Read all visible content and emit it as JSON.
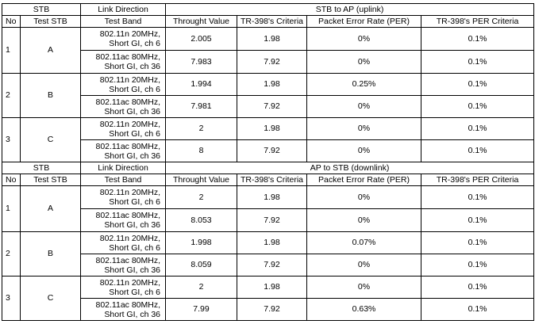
{
  "headers": {
    "stb": "STB",
    "link_direction": "Link Direction",
    "no": "No",
    "test_stb": "Test STB",
    "test_band": "Test Band",
    "throughput": "Throught Value",
    "tr_criteria": "TR-398's Criteria",
    "per": "Packet Error Rate (PER)",
    "tr_per": "TR-398's PER Criteria"
  },
  "sections": [
    {
      "direction": "STB to AP (uplink)",
      "groups": [
        {
          "no": "1",
          "stb": "A",
          "rows": [
            {
              "band1": "802.11n 20MHz,",
              "band2": "Short GI, ch 6",
              "throughput": "2.005",
              "criteria": "1.98",
              "per": "0%",
              "per_criteria": "0.1%"
            },
            {
              "band1": "802.11ac 80MHz,",
              "band2": "Short GI, ch 36",
              "throughput": "7.983",
              "criteria": "7.92",
              "per": "0%",
              "per_criteria": "0.1%"
            }
          ]
        },
        {
          "no": "2",
          "stb": "B",
          "rows": [
            {
              "band1": "802.11n 20MHz,",
              "band2": "Short GI, ch 6",
              "throughput": "1.994",
              "criteria": "1.98",
              "per": "0.25%",
              "per_criteria": "0.1%"
            },
            {
              "band1": "802.11ac 80MHz,",
              "band2": "Short GI, ch 36",
              "throughput": "7.981",
              "criteria": "7.92",
              "per": "0%",
              "per_criteria": "0.1%"
            }
          ]
        },
        {
          "no": "3",
          "stb": "C",
          "rows": [
            {
              "band1": "802.11n 20MHz,",
              "band2": "Short GI, ch 6",
              "throughput": "2",
              "criteria": "1.98",
              "per": "0%",
              "per_criteria": "0.1%"
            },
            {
              "band1": "802.11ac 80MHz,",
              "band2": "Short GI, ch 36",
              "throughput": "8",
              "criteria": "7.92",
              "per": "0%",
              "per_criteria": "0.1%"
            }
          ]
        }
      ]
    },
    {
      "direction": "AP to STB (downlink)",
      "groups": [
        {
          "no": "1",
          "stb": "A",
          "rows": [
            {
              "band1": "802.11n 20MHz,",
              "band2": "Short GI, ch 6",
              "throughput": "2",
              "criteria": "1.98",
              "per": "0%",
              "per_criteria": "0.1%"
            },
            {
              "band1": "802.11ac 80MHz,",
              "band2": "Short GI, ch 36",
              "throughput": "8.053",
              "criteria": "7.92",
              "per": "0%",
              "per_criteria": "0.1%"
            }
          ]
        },
        {
          "no": "2",
          "stb": "B",
          "rows": [
            {
              "band1": "802.11n 20MHz,",
              "band2": "Short GI, ch 6",
              "throughput": "1.998",
              "criteria": "1.98",
              "per": "0.07%",
              "per_criteria": "0.1%"
            },
            {
              "band1": "802.11ac 80MHz,",
              "band2": "Short GI, ch 36",
              "throughput": "8.059",
              "criteria": "7.92",
              "per": "0%",
              "per_criteria": "0.1%"
            }
          ]
        },
        {
          "no": "3",
          "stb": "C",
          "rows": [
            {
              "band1": "802.11n 20MHz,",
              "band2": "Short GI, ch 6",
              "throughput": "2",
              "criteria": "1.98",
              "per": "0%",
              "per_criteria": "0.1%"
            },
            {
              "band1": "802.11ac 80MHz,",
              "band2": "Short GI, ch 36",
              "throughput": "7.99",
              "criteria": "7.92",
              "per": "0.63%",
              "per_criteria": "0.1%"
            }
          ]
        }
      ]
    }
  ]
}
